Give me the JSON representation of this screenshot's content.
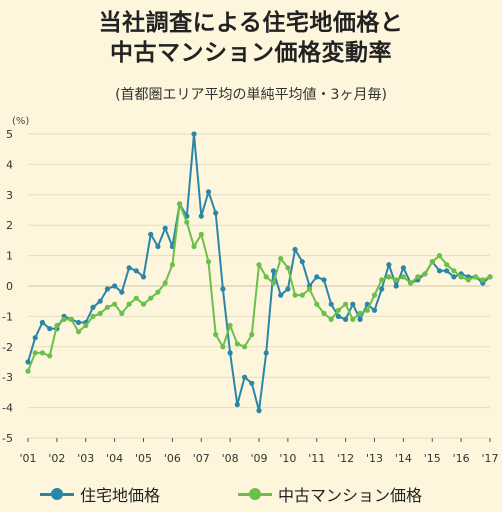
{
  "title_line1": "当社調査による住宅地価格と",
  "title_line2": "中古マンション価格変動率",
  "subtitle": "(首都圏エリア平均の単純平均値・3ヶ月毎)",
  "unit_label": "(%)",
  "colors": {
    "series1": "#2a86a8",
    "series2": "#6cc04a",
    "background": "#fdf6dd",
    "grid": "#e3dcc0",
    "axis": "#555555"
  },
  "chart_data": {
    "type": "line",
    "ylim": [
      -5,
      5
    ],
    "xlim": [
      2001,
      2017
    ],
    "y_ticks": [
      5,
      4,
      3,
      2,
      1,
      0,
      -1,
      -2,
      -3,
      -4,
      -5
    ],
    "y_tick_labels": [
      "5",
      "4",
      "3",
      "2",
      "1",
      "0",
      "-1",
      "-2",
      "-3",
      "-4",
      "-5"
    ],
    "x_ticks": [
      2001,
      2002,
      2003,
      2004,
      2005,
      2006,
      2007,
      2008,
      2009,
      2010,
      2011,
      2012,
      2013,
      2014,
      2015,
      2016,
      2017
    ],
    "x_tick_labels": [
      "'01",
      "'02",
      "'03",
      "'04",
      "'05",
      "'06",
      "'07",
      "'08",
      "'09",
      "'10",
      "'11",
      "'12",
      "'13",
      "'14",
      "'15",
      "'16",
      "'17"
    ],
    "grid": "horizontal",
    "legend_position": "bottom",
    "series": [
      {
        "name": "住宅地価格",
        "x": [
          2001.0,
          2001.25,
          2001.5,
          2001.75,
          2002.0,
          2002.25,
          2002.5,
          2002.75,
          2003.0,
          2003.25,
          2003.5,
          2003.75,
          2004.0,
          2004.25,
          2004.5,
          2004.75,
          2005.0,
          2005.25,
          2005.5,
          2005.75,
          2006.0,
          2006.25,
          2006.5,
          2006.75,
          2007.0,
          2007.25,
          2007.5,
          2007.75,
          2008.0,
          2008.25,
          2008.5,
          2008.75,
          2009.0,
          2009.25,
          2009.5,
          2009.75,
          2010.0,
          2010.25,
          2010.5,
          2010.75,
          2011.0,
          2011.25,
          2011.5,
          2011.75,
          2012.0,
          2012.25,
          2012.5,
          2012.75,
          2013.0,
          2013.25,
          2013.5,
          2013.75,
          2014.0,
          2014.25,
          2014.5,
          2014.75,
          2015.0,
          2015.25,
          2015.5,
          2015.75,
          2016.0,
          2016.25,
          2016.5,
          2016.75,
          2017.0
        ],
        "y": [
          -2.5,
          -1.7,
          -1.2,
          -1.4,
          -1.4,
          -1.0,
          -1.1,
          -1.2,
          -1.2,
          -0.7,
          -0.5,
          -0.1,
          0.0,
          -0.2,
          0.6,
          0.5,
          0.3,
          1.7,
          1.3,
          1.9,
          1.3,
          2.7,
          2.3,
          5.0,
          2.3,
          3.1,
          2.4,
          -0.1,
          -2.2,
          -3.9,
          -3.0,
          -3.2,
          -4.1,
          -2.2,
          0.5,
          -0.3,
          -0.1,
          1.2,
          0.8,
          0.0,
          0.3,
          0.2,
          -0.6,
          -1.0,
          -1.1,
          -0.6,
          -1.1,
          -0.6,
          -0.8,
          -0.1,
          0.7,
          0.0,
          0.6,
          0.1,
          0.2,
          0.4,
          0.8,
          0.5,
          0.5,
          0.3,
          0.4,
          0.3,
          0.3,
          0.1,
          0.3
        ]
      },
      {
        "name": "中古マンション価格",
        "x": [
          2001.0,
          2001.25,
          2001.5,
          2001.75,
          2002.0,
          2002.25,
          2002.5,
          2002.75,
          2003.0,
          2003.25,
          2003.5,
          2003.75,
          2004.0,
          2004.25,
          2004.5,
          2004.75,
          2005.0,
          2005.25,
          2005.5,
          2005.75,
          2006.0,
          2006.25,
          2006.5,
          2006.75,
          2007.0,
          2007.25,
          2007.5,
          2007.75,
          2008.0,
          2008.25,
          2008.5,
          2008.75,
          2009.0,
          2009.25,
          2009.5,
          2009.75,
          2010.0,
          2010.25,
          2010.5,
          2010.75,
          2011.0,
          2011.25,
          2011.5,
          2011.75,
          2012.0,
          2012.25,
          2012.5,
          2012.75,
          2013.0,
          2013.25,
          2013.5,
          2013.75,
          2014.0,
          2014.25,
          2014.5,
          2014.75,
          2015.0,
          2015.25,
          2015.5,
          2015.75,
          2016.0,
          2016.25,
          2016.5,
          2016.75,
          2017.0
        ],
        "y": [
          -2.8,
          -2.2,
          -2.2,
          -2.3,
          -1.3,
          -1.1,
          -1.1,
          -1.5,
          -1.3,
          -1.0,
          -0.9,
          -0.7,
          -0.6,
          -0.9,
          -0.6,
          -0.4,
          -0.6,
          -0.4,
          -0.2,
          0.1,
          0.7,
          2.7,
          2.1,
          1.3,
          1.7,
          0.8,
          -1.6,
          -2.0,
          -1.3,
          -1.9,
          -2.0,
          -1.6,
          0.7,
          0.3,
          0.1,
          0.9,
          0.6,
          -0.3,
          -0.3,
          -0.1,
          -0.6,
          -0.9,
          -1.1,
          -0.8,
          -0.6,
          -1.1,
          -0.9,
          -0.8,
          -0.3,
          0.2,
          0.3,
          0.2,
          0.3,
          0.1,
          0.3,
          0.4,
          0.8,
          1.0,
          0.7,
          0.5,
          0.3,
          0.2,
          0.3,
          0.2,
          0.3
        ]
      }
    ]
  }
}
